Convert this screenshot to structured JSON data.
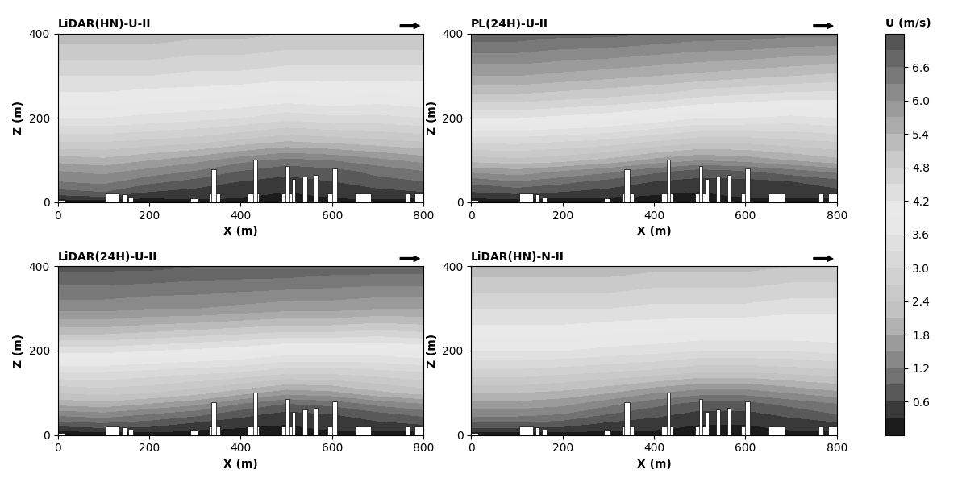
{
  "chart_data": [
    {
      "type": "contour",
      "title": "LiDAR(HN)-U-II",
      "xlabel": "X (m)",
      "ylabel": "Z (m)",
      "x": [
        0,
        100,
        200,
        300,
        400,
        500,
        600,
        700,
        800
      ],
      "y": [
        0,
        10,
        25,
        50,
        75,
        100,
        150,
        200,
        250,
        300,
        400
      ],
      "values": [
        [
          0,
          0,
          0,
          0,
          0,
          0,
          0,
          0,
          0
        ],
        [
          0.4,
          0.5,
          0.3,
          0.4,
          0.3,
          0.2,
          0.3,
          0.4,
          0.3
        ],
        [
          0.8,
          0.9,
          0.6,
          0.5,
          0.4,
          0.3,
          0.4,
          0.5,
          0.6
        ],
        [
          1.2,
          1.3,
          1.0,
          0.8,
          0.6,
          0.5,
          0.6,
          0.8,
          0.9
        ],
        [
          1.5,
          1.6,
          1.4,
          1.2,
          0.9,
          0.7,
          0.8,
          1.0,
          1.2
        ],
        [
          1.9,
          2.0,
          1.8,
          1.6,
          1.3,
          1.1,
          1.2,
          1.4,
          1.6
        ],
        [
          2.8,
          2.8,
          2.7,
          2.6,
          2.4,
          2.2,
          2.3,
          2.4,
          2.5
        ],
        [
          3.6,
          3.6,
          3.5,
          3.4,
          3.3,
          3.1,
          3.2,
          3.2,
          3.3
        ],
        [
          4.1,
          4.1,
          4.0,
          4.0,
          3.9,
          3.8,
          3.9,
          3.8,
          3.9
        ],
        [
          4.5,
          4.5,
          4.5,
          4.4,
          4.4,
          4.3,
          4.3,
          4.3,
          4.3
        ],
        [
          5.3,
          5.3,
          5.3,
          5.2,
          5.2,
          5.1,
          5.1,
          5.1,
          5.1
        ]
      ],
      "xlim": [
        0,
        800
      ],
      "ylim": [
        0,
        400
      ],
      "xticks": [
        0,
        200,
        400,
        600,
        800
      ],
      "yticks": [
        0,
        200,
        400
      ]
    },
    {
      "type": "contour",
      "title": "PL(24H)-U-II",
      "xlabel": "X (m)",
      "ylabel": "Z (m)",
      "x": [
        0,
        100,
        200,
        300,
        400,
        500,
        600,
        700,
        800
      ],
      "y": [
        0,
        10,
        25,
        50,
        75,
        100,
        150,
        200,
        250,
        300,
        400
      ],
      "values": [
        [
          0,
          0,
          0,
          0,
          0,
          0,
          0,
          0,
          0
        ],
        [
          0.3,
          0.4,
          0.3,
          0.3,
          0.2,
          0.2,
          0.3,
          0.3,
          0.3
        ],
        [
          0.6,
          0.7,
          0.6,
          0.5,
          0.4,
          0.3,
          0.4,
          0.5,
          0.5
        ],
        [
          1.0,
          1.2,
          1.0,
          0.8,
          0.6,
          0.5,
          0.5,
          0.6,
          0.8
        ],
        [
          1.6,
          1.7,
          1.5,
          1.3,
          1.0,
          0.8,
          0.9,
          1.1,
          1.3
        ],
        [
          2.2,
          2.3,
          2.2,
          2.0,
          1.7,
          1.5,
          1.6,
          1.8,
          2.0
        ],
        [
          3.2,
          3.2,
          3.1,
          3.0,
          2.8,
          2.6,
          2.6,
          2.7,
          2.8
        ],
        [
          4.2,
          4.2,
          4.1,
          4.0,
          3.8,
          3.6,
          3.6,
          3.5,
          3.6
        ],
        [
          5.0,
          5.0,
          4.9,
          4.8,
          4.7,
          4.5,
          4.4,
          4.3,
          4.3
        ],
        [
          5.7,
          5.7,
          5.6,
          5.5,
          5.4,
          5.3,
          5.2,
          5.1,
          5.0
        ],
        [
          6.8,
          6.8,
          6.7,
          6.7,
          6.6,
          6.5,
          6.5,
          6.4,
          6.4
        ]
      ],
      "xlim": [
        0,
        800
      ],
      "ylim": [
        0,
        400
      ],
      "xticks": [
        0,
        200,
        400,
        600,
        800
      ],
      "yticks": [
        0,
        200,
        400
      ]
    },
    {
      "type": "contour",
      "title": "LiDAR(24H)-U-II",
      "xlabel": "X (m)",
      "ylabel": "Z (m)",
      "x": [
        0,
        100,
        200,
        300,
        400,
        500,
        600,
        700,
        800
      ],
      "y": [
        0,
        10,
        25,
        50,
        75,
        100,
        150,
        200,
        250,
        300,
        400
      ],
      "values": [
        [
          0,
          0,
          0,
          0,
          0,
          0,
          0,
          0,
          0
        ],
        [
          0.3,
          0.4,
          0.4,
          0.3,
          0.2,
          0.2,
          0.3,
          0.3,
          0.3
        ],
        [
          0.7,
          0.8,
          0.7,
          0.5,
          0.4,
          0.3,
          0.4,
          0.5,
          0.6
        ],
        [
          1.3,
          1.4,
          1.2,
          1.0,
          0.7,
          0.5,
          0.6,
          0.8,
          1.0
        ],
        [
          1.9,
          2.0,
          1.8,
          1.6,
          1.2,
          0.9,
          1.0,
          1.3,
          1.5
        ],
        [
          2.4,
          2.5,
          2.4,
          2.2,
          1.9,
          1.6,
          1.7,
          2.0,
          2.2
        ],
        [
          3.3,
          3.3,
          3.2,
          3.1,
          3.0,
          2.8,
          2.8,
          2.9,
          3.0
        ],
        [
          4.3,
          4.3,
          4.2,
          4.1,
          4.0,
          3.8,
          3.8,
          3.8,
          3.9
        ],
        [
          5.3,
          5.3,
          5.2,
          5.1,
          5.0,
          4.9,
          4.9,
          4.8,
          4.9
        ],
        [
          6.1,
          6.1,
          6.0,
          6.0,
          5.9,
          5.8,
          5.8,
          5.7,
          5.7
        ],
        [
          7.0,
          7.0,
          7.0,
          6.9,
          6.9,
          6.9,
          6.8,
          6.8,
          6.8
        ]
      ],
      "xlim": [
        0,
        800
      ],
      "ylim": [
        0,
        400
      ],
      "xticks": [
        0,
        200,
        400,
        600,
        800
      ],
      "yticks": [
        0,
        200,
        400
      ]
    },
    {
      "type": "contour",
      "title": "LiDAR(HN)-N-II",
      "xlabel": "X (m)",
      "ylabel": "Z (m)",
      "x": [
        0,
        100,
        200,
        300,
        400,
        500,
        600,
        700,
        800
      ],
      "y": [
        0,
        10,
        25,
        50,
        75,
        100,
        150,
        200,
        250,
        300,
        400
      ],
      "values": [
        [
          0,
          0,
          0,
          0,
          0,
          0,
          0,
          0,
          0
        ],
        [
          0.4,
          0.4,
          0.4,
          0.3,
          0.3,
          0.2,
          0.2,
          0.3,
          0.3
        ],
        [
          0.8,
          0.8,
          0.7,
          0.5,
          0.4,
          0.3,
          0.3,
          0.4,
          0.5
        ],
        [
          1.3,
          1.3,
          1.2,
          0.9,
          0.7,
          0.5,
          0.5,
          0.7,
          0.9
        ],
        [
          1.7,
          1.7,
          1.6,
          1.3,
          1.0,
          0.8,
          0.8,
          1.0,
          1.2
        ],
        [
          2.1,
          2.1,
          2.0,
          1.8,
          1.5,
          1.3,
          1.3,
          1.5,
          1.7
        ],
        [
          2.9,
          2.9,
          2.8,
          2.7,
          2.6,
          2.4,
          2.4,
          2.5,
          2.6
        ],
        [
          3.6,
          3.6,
          3.6,
          3.5,
          3.4,
          3.3,
          3.3,
          3.3,
          3.4
        ],
        [
          4.1,
          4.1,
          4.1,
          4.0,
          4.0,
          3.9,
          3.9,
          3.9,
          3.9
        ],
        [
          4.5,
          4.5,
          4.5,
          4.5,
          4.4,
          4.4,
          4.4,
          4.3,
          4.3
        ],
        [
          5.3,
          5.3,
          5.3,
          5.3,
          5.2,
          5.2,
          5.2,
          5.1,
          5.1
        ]
      ],
      "xlim": [
        0,
        800
      ],
      "ylim": [
        0,
        400
      ],
      "xticks": [
        0,
        200,
        400,
        600,
        800
      ],
      "yticks": [
        0,
        200,
        400
      ]
    }
  ],
  "buildings": [
    [
      0,
      15,
      5
    ],
    [
      105,
      30,
      20
    ],
    [
      140,
      10,
      18
    ],
    [
      155,
      10,
      12
    ],
    [
      290,
      15,
      10
    ],
    [
      330,
      25,
      20
    ],
    [
      335,
      12,
      78
    ],
    [
      415,
      25,
      20
    ],
    [
      428,
      8,
      100
    ],
    [
      490,
      30,
      20
    ],
    [
      498,
      8,
      85
    ],
    [
      512,
      8,
      55
    ],
    [
      535,
      10,
      60
    ],
    [
      560,
      8,
      65
    ],
    [
      590,
      20,
      20
    ],
    [
      600,
      10,
      80
    ],
    [
      650,
      35,
      20
    ],
    [
      760,
      10,
      20
    ],
    [
      780,
      20,
      20
    ]
  ],
  "colorbar": {
    "label": "U (m/s)",
    "levels": [
      0,
      0.3,
      0.6,
      0.9,
      1.2,
      1.5,
      1.8,
      2.1,
      2.4,
      2.7,
      3.0,
      3.3,
      3.6,
      3.9,
      4.2,
      4.5,
      4.8,
      5.1,
      5.4,
      5.7,
      6.0,
      6.3,
      6.6,
      6.9,
      7.2
    ],
    "ticks": [
      0.6,
      1.2,
      1.8,
      2.4,
      3.0,
      3.6,
      4.2,
      4.8,
      5.4,
      6.0,
      6.6
    ]
  }
}
